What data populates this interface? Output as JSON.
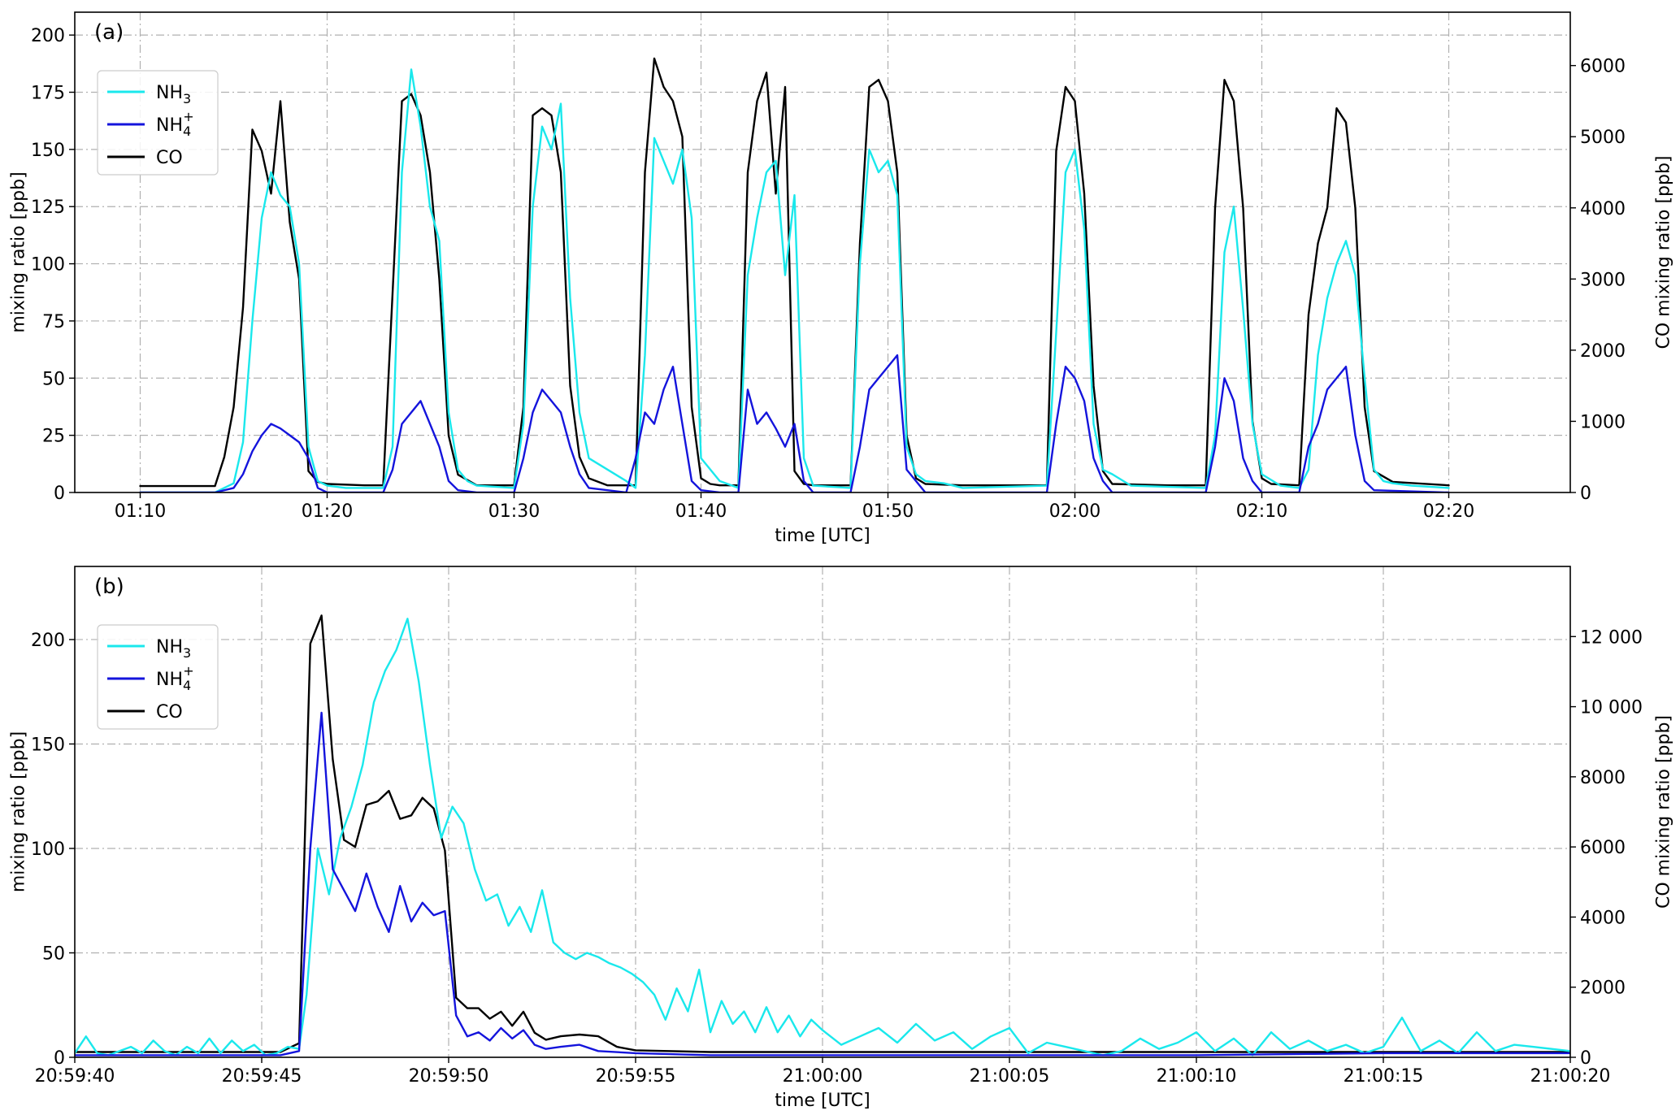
{
  "colors": {
    "nh3": "#1ae8ec",
    "nh4": "#1414dc",
    "co": "#000000"
  },
  "chart_data": [
    {
      "type": "line",
      "panel_label": "(a)",
      "xlabel": "time [UTC]",
      "ylabel": "mixing ratio [ppb]",
      "ylabel_right": "CO mixing ratio [ppb]",
      "grid": true,
      "legend_position": "top-left",
      "xlim_minutes": [
        66.5,
        146.5
      ],
      "ylim": [
        0,
        210
      ],
      "ylim_right": [
        0,
        6750
      ],
      "x_ticks": [
        70,
        80,
        90,
        100,
        110,
        120,
        130,
        140
      ],
      "x_tick_labels": [
        "01:10",
        "01:20",
        "01:30",
        "01:40",
        "01:50",
        "02:00",
        "02:10",
        "02:20"
      ],
      "y_ticks": [
        0,
        25,
        50,
        75,
        100,
        125,
        150,
        175,
        200
      ],
      "y_tick_labels": [
        "0",
        "25",
        "50",
        "75",
        "100",
        "125",
        "150",
        "175",
        "200"
      ],
      "y_right_ticks": [
        0,
        1000,
        2000,
        3000,
        4000,
        5000,
        6000
      ],
      "y_right_tick_labels": [
        "0",
        "1000",
        "2000",
        "3000",
        "4000",
        "5000",
        "6000"
      ],
      "series": [
        {
          "name": "NH3",
          "legend_main": "NH",
          "legend_sub": "3",
          "legend_sup": "",
          "color_key": "nh3",
          "axis": "left",
          "x": [
            70,
            74,
            75,
            75.5,
            76,
            76.5,
            77,
            77.5,
            78,
            78.5,
            79,
            79.5,
            80,
            81,
            83,
            83.5,
            84,
            84.5,
            85,
            85.5,
            86,
            86.5,
            87,
            87.5,
            88,
            90,
            90.5,
            91,
            91.5,
            92,
            92.5,
            93,
            93.5,
            94,
            96,
            96.5,
            97,
            97.5,
            98,
            98.5,
            99,
            99.5,
            100,
            101,
            102,
            102.5,
            103,
            103.5,
            104,
            104.5,
            105,
            105.5,
            106,
            108,
            108.5,
            109,
            109.5,
            110,
            110.5,
            111,
            111.5,
            112,
            113,
            114,
            118.5,
            119,
            119.5,
            120,
            120.5,
            121,
            121.5,
            122,
            123,
            127,
            127.5,
            128,
            128.5,
            129,
            129.5,
            130,
            131,
            132,
            132.5,
            133,
            133.5,
            134,
            134.5,
            135,
            135.5,
            136,
            136.5,
            137,
            138,
            140
          ],
          "y": [
            0,
            0,
            4,
            22,
            75,
            120,
            140,
            130,
            125,
            100,
            20,
            5,
            3,
            2,
            2,
            20,
            140,
            185,
            160,
            125,
            110,
            35,
            10,
            5,
            3,
            2,
            30,
            125,
            160,
            150,
            170,
            85,
            35,
            15,
            5,
            2,
            60,
            155,
            145,
            135,
            150,
            120,
            15,
            5,
            2,
            95,
            120,
            140,
            145,
            95,
            130,
            15,
            3,
            2,
            100,
            150,
            140,
            145,
            130,
            20,
            8,
            5,
            4,
            2,
            3,
            70,
            140,
            150,
            115,
            30,
            10,
            8,
            3,
            2,
            25,
            105,
            125,
            80,
            30,
            8,
            3,
            2,
            10,
            60,
            85,
            100,
            110,
            95,
            50,
            10,
            5,
            4,
            3,
            2
          ]
        },
        {
          "name": "NH4+",
          "legend_main": "NH",
          "legend_sub": "4",
          "legend_sup": "+",
          "color_key": "nh4",
          "axis": "left",
          "x": [
            70,
            74,
            75,
            75.5,
            76,
            76.5,
            77,
            77.5,
            78,
            78.5,
            79,
            79.5,
            80,
            83,
            83.5,
            84,
            84.5,
            85,
            85.5,
            86,
            86.5,
            87,
            88,
            90,
            90.5,
            91,
            91.5,
            92,
            92.5,
            93,
            93.5,
            94,
            96,
            96.5,
            97,
            97.5,
            98,
            98.5,
            99,
            99.5,
            100,
            101,
            102,
            102.5,
            103,
            103.5,
            104,
            104.5,
            105,
            105.5,
            106,
            108,
            108.5,
            109,
            109.5,
            110,
            110.5,
            111,
            112,
            118.5,
            119,
            119.5,
            120,
            120.5,
            121,
            121.5,
            122,
            127,
            127.5,
            128,
            128.5,
            129,
            129.5,
            130,
            132,
            132.5,
            133,
            133.5,
            134,
            134.5,
            135,
            135.5,
            136,
            140
          ],
          "y": [
            0,
            0,
            2,
            8,
            18,
            25,
            30,
            28,
            25,
            22,
            15,
            2,
            0,
            0,
            10,
            30,
            35,
            40,
            30,
            20,
            5,
            1,
            0,
            0,
            15,
            35,
            45,
            40,
            35,
            20,
            8,
            2,
            0,
            15,
            35,
            30,
            45,
            55,
            30,
            5,
            1,
            0,
            0,
            45,
            30,
            35,
            28,
            20,
            30,
            5,
            0,
            0,
            20,
            45,
            50,
            55,
            60,
            10,
            0,
            0,
            30,
            55,
            50,
            40,
            15,
            5,
            0,
            0,
            20,
            50,
            40,
            15,
            5,
            0,
            0,
            20,
            30,
            45,
            50,
            55,
            25,
            5,
            1,
            0
          ]
        },
        {
          "name": "CO",
          "legend_main": "CO",
          "legend_sub": "",
          "legend_sup": "",
          "color_key": "co",
          "axis": "right",
          "x": [
            70,
            74,
            74.5,
            75,
            75.5,
            76,
            76.5,
            77,
            77.5,
            78,
            78.5,
            79,
            79.5,
            80,
            82,
            83,
            83.5,
            84,
            84.5,
            85,
            85.5,
            86,
            86.5,
            87,
            88,
            90,
            90.5,
            91,
            91.5,
            92,
            92.5,
            93,
            93.5,
            94,
            95,
            96.5,
            97,
            97.5,
            98,
            98.5,
            99,
            99.5,
            100,
            100.5,
            101,
            102,
            102.5,
            103,
            103.5,
            104,
            104.5,
            105,
            105.5,
            106,
            108,
            108.5,
            109,
            109.5,
            110,
            110.5,
            111,
            111.5,
            112,
            114,
            118.5,
            119,
            119.5,
            120,
            120.5,
            121,
            121.5,
            122,
            125,
            127,
            127.5,
            128,
            128.5,
            129,
            129.5,
            130,
            130.5,
            132,
            132.5,
            133,
            133.5,
            134,
            134.5,
            135,
            135.5,
            136,
            137,
            140
          ],
          "y": [
            90,
            90,
            500,
            1200,
            2600,
            5100,
            4800,
            4200,
            5500,
            3800,
            3000,
            300,
            150,
            120,
            100,
            100,
            2800,
            5500,
            5600,
            5300,
            4500,
            3000,
            800,
            250,
            100,
            100,
            1200,
            5300,
            5400,
            5300,
            4500,
            1500,
            500,
            200,
            100,
            100,
            4500,
            6100,
            5700,
            5500,
            5000,
            1200,
            200,
            120,
            100,
            100,
            4500,
            5500,
            5900,
            4200,
            5700,
            300,
            120,
            100,
            100,
            3500,
            5700,
            5800,
            5500,
            4500,
            800,
            200,
            120,
            100,
            100,
            4800,
            5700,
            5500,
            4200,
            1500,
            300,
            120,
            100,
            100,
            4000,
            5800,
            5500,
            4000,
            1000,
            200,
            120,
            100,
            2500,
            3500,
            4000,
            5400,
            5200,
            4000,
            1200,
            300,
            150,
            100
          ]
        }
      ]
    },
    {
      "type": "line",
      "panel_label": "(b)",
      "xlabel": "time [UTC]",
      "ylabel": "mixing ratio [ppb]",
      "ylabel_right": "CO mixing ratio [ppb]",
      "grid": true,
      "legend_position": "top-left",
      "xlim_seconds": [
        0,
        40
      ],
      "ylim": [
        0,
        235
      ],
      "ylim_right": [
        0,
        14000
      ],
      "x_ticks": [
        0,
        5,
        10,
        15,
        20,
        25,
        30,
        35,
        40
      ],
      "x_tick_labels": [
        "20:59:40",
        "20:59:45",
        "20:59:50",
        "20:59:55",
        "21:00:00",
        "21:00:05",
        "21:00:10",
        "21:00:15",
        "21:00:20"
      ],
      "y_ticks": [
        0,
        50,
        100,
        150,
        200
      ],
      "y_tick_labels": [
        "0",
        "50",
        "100",
        "150",
        "200"
      ],
      "y_right_ticks": [
        0,
        2000,
        4000,
        6000,
        8000,
        10000,
        12000
      ],
      "y_right_tick_labels": [
        "0",
        "2000",
        "4000",
        "6000",
        "8000",
        "10 000",
        "12 000"
      ],
      "series": [
        {
          "name": "NH3",
          "legend_main": "NH",
          "legend_sub": "3",
          "legend_sup": "",
          "color_key": "nh3",
          "axis": "left",
          "x": [
            0,
            0.3,
            0.6,
            0.9,
            1.2,
            1.5,
            1.8,
            2.1,
            2.4,
            2.7,
            3.0,
            3.3,
            3.6,
            3.9,
            4.2,
            4.5,
            4.8,
            5.1,
            5.4,
            5.7,
            6.0,
            6.2,
            6.5,
            6.8,
            7.1,
            7.4,
            7.7,
            8.0,
            8.3,
            8.6,
            8.9,
            9.2,
            9.5,
            9.8,
            10.1,
            10.4,
            10.7,
            11.0,
            11.3,
            11.6,
            11.9,
            12.2,
            12.5,
            12.8,
            13.1,
            13.4,
            13.7,
            14.0,
            14.3,
            14.6,
            14.9,
            15.2,
            15.5,
            15.8,
            16.1,
            16.4,
            16.7,
            17.0,
            17.3,
            17.6,
            17.9,
            18.2,
            18.5,
            18.8,
            19.1,
            19.4,
            19.7,
            20.0,
            20.5,
            21.0,
            21.5,
            22.0,
            22.5,
            23.0,
            23.5,
            24.0,
            24.5,
            25.0,
            25.5,
            26.0,
            26.5,
            27.0,
            27.5,
            28.0,
            28.5,
            29.0,
            29.5,
            30.0,
            30.5,
            31.0,
            31.5,
            32.0,
            32.5,
            33.0,
            33.5,
            34.0,
            34.5,
            35.0,
            35.5,
            36.0,
            36.5,
            37.0,
            37.5,
            38.0,
            38.5,
            39.0,
            39.5,
            40.0
          ],
          "y": [
            2,
            10,
            2,
            1,
            3,
            5,
            2,
            8,
            3,
            1,
            5,
            2,
            9,
            2,
            8,
            3,
            6,
            1,
            2,
            5,
            4,
            30,
            100,
            78,
            105,
            120,
            140,
            170,
            185,
            195,
            210,
            180,
            140,
            105,
            120,
            112,
            90,
            75,
            78,
            63,
            72,
            60,
            80,
            55,
            50,
            47,
            50,
            48,
            45,
            43,
            40,
            36,
            30,
            18,
            33,
            22,
            42,
            12,
            27,
            16,
            22,
            12,
            24,
            12,
            20,
            10,
            18,
            13,
            6,
            10,
            14,
            7,
            16,
            8,
            12,
            4,
            10,
            14,
            2,
            7,
            5,
            3,
            1,
            3,
            9,
            4,
            7,
            12,
            3,
            9,
            1,
            12,
            4,
            8,
            3,
            6,
            2,
            5,
            19,
            3,
            8,
            2,
            12,
            3,
            6,
            5,
            4,
            3
          ]
        },
        {
          "name": "NH4+",
          "legend_main": "NH",
          "legend_sub": "4",
          "legend_sup": "+",
          "color_key": "nh4",
          "axis": "left",
          "x": [
            0,
            2,
            4,
            5.5,
            6.0,
            6.3,
            6.6,
            6.9,
            7.2,
            7.5,
            7.8,
            8.1,
            8.4,
            8.7,
            9.0,
            9.3,
            9.6,
            9.9,
            10.2,
            10.5,
            10.8,
            11.1,
            11.4,
            11.7,
            12.0,
            12.3,
            12.6,
            13.0,
            13.5,
            14.0,
            15.0,
            17.0,
            20.0,
            25.0,
            30.0,
            35.0,
            40.0
          ],
          "y": [
            1,
            1,
            1,
            1,
            3,
            100,
            165,
            90,
            80,
            70,
            88,
            72,
            60,
            82,
            65,
            74,
            68,
            70,
            20,
            10,
            12,
            8,
            14,
            9,
            13,
            6,
            4,
            5,
            6,
            3,
            2,
            1,
            1,
            1,
            1,
            2,
            2
          ]
        },
        {
          "name": "CO",
          "legend_main": "CO",
          "legend_sub": "",
          "legend_sup": "",
          "color_key": "co",
          "axis": "right",
          "x": [
            0,
            2,
            4,
            5.5,
            6.0,
            6.3,
            6.6,
            6.9,
            7.2,
            7.5,
            7.8,
            8.1,
            8.4,
            8.7,
            9.0,
            9.3,
            9.6,
            9.9,
            10.2,
            10.5,
            10.8,
            11.1,
            11.4,
            11.7,
            12.0,
            12.3,
            12.6,
            13.0,
            13.5,
            14.0,
            14.5,
            15.0,
            17.0,
            20.0,
            25.0,
            30.0,
            35.0,
            40.0
          ],
          "y": [
            150,
            150,
            150,
            150,
            400,
            11800,
            12600,
            8500,
            6200,
            6000,
            7200,
            7300,
            7600,
            6800,
            6900,
            7400,
            7100,
            5900,
            1700,
            1400,
            1400,
            1100,
            1300,
            900,
            1300,
            700,
            500,
            600,
            650,
            600,
            300,
            200,
            150,
            150,
            150,
            150,
            150,
            150
          ]
        }
      ]
    }
  ]
}
